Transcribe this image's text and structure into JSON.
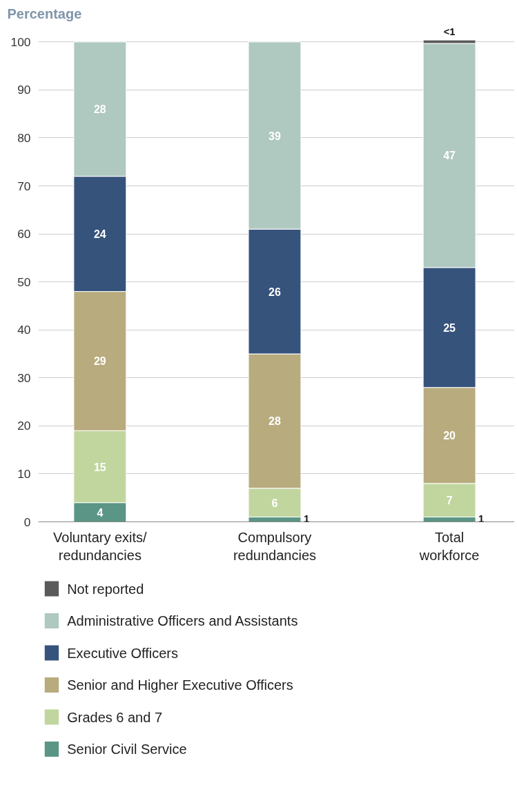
{
  "chart_data": {
    "type": "bar",
    "stacked": true,
    "ylabel": "Percentage",
    "categories": [
      "Voluntary exits/ redundancies",
      "Compulsory redundancies",
      "Total workforce"
    ],
    "series": [
      {
        "name": "Senior Civil Service",
        "color": "#5a9585",
        "values": [
          4,
          1,
          1
        ],
        "value_labels": [
          "4",
          "1",
          "1"
        ]
      },
      {
        "name": "Grades 6 and 7",
        "color": "#c0d69e",
        "values": [
          15,
          6,
          7
        ],
        "value_labels": [
          "15",
          "6",
          "7"
        ]
      },
      {
        "name": "Senior and Higher Executive Officers",
        "color": "#b8ab7e",
        "values": [
          29,
          28,
          20
        ],
        "value_labels": [
          "29",
          "28",
          "20"
        ]
      },
      {
        "name": "Executive Officers",
        "color": "#36537c",
        "values": [
          24,
          26,
          25
        ],
        "value_labels": [
          "24",
          "26",
          "25"
        ]
      },
      {
        "name": "Administrative Officers and Assistants",
        "color": "#afc8c0",
        "values": [
          28,
          39,
          46.7
        ],
        "value_labels": [
          "28",
          "39",
          "47"
        ]
      },
      {
        "name": "Not reported",
        "color": "#5a5a5a",
        "values": [
          null,
          null,
          0.7
        ],
        "value_labels": [
          null,
          null,
          "<1"
        ]
      }
    ],
    "ylim": [
      0,
      100
    ],
    "yticks": [
      0,
      10,
      20,
      30,
      40,
      50,
      60,
      70,
      80,
      90,
      100
    ],
    "grid": "y",
    "legend": "bottom"
  }
}
